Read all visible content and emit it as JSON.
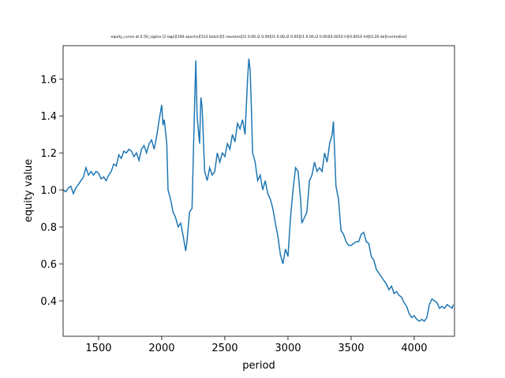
{
  "chart_data": {
    "type": "line",
    "title": "equity_curve at 0.50_sigma [2 lags][100 epochs][512 batch][5 neurons][l1 0.00,l2 0.00][l1 0.00,l2 0.00][l1 0.00,l2 0.00][0.0010 lr][0.0010 lrd][0.20 do][normalize]",
    "x_label": "period",
    "y_label": "equity value",
    "color": "#1f77b4",
    "x": [
      1220,
      1240,
      1260,
      1280,
      1300,
      1320,
      1340,
      1360,
      1380,
      1400,
      1420,
      1440,
      1460,
      1480,
      1500,
      1520,
      1540,
      1560,
      1580,
      1600,
      1620,
      1640,
      1660,
      1680,
      1700,
      1720,
      1740,
      1760,
      1780,
      1800,
      1820,
      1840,
      1860,
      1880,
      1900,
      1920,
      1940,
      1960,
      1980,
      2000,
      2010,
      2020,
      2040,
      2050,
      2070,
      2090,
      2110,
      2130,
      2150,
      2170,
      2190,
      2200,
      2220,
      2240,
      2260,
      2270,
      2280,
      2300,
      2310,
      2320,
      2340,
      2360,
      2380,
      2400,
      2420,
      2440,
      2460,
      2480,
      2500,
      2520,
      2540,
      2560,
      2580,
      2600,
      2620,
      2640,
      2660,
      2680,
      2690,
      2700,
      2710,
      2720,
      2740,
      2760,
      2780,
      2800,
      2820,
      2840,
      2860,
      2880,
      2900,
      2920,
      2940,
      2960,
      2980,
      3000,
      3020,
      3040,
      3060,
      3080,
      3100,
      3110,
      3130,
      3150,
      3170,
      3190,
      3210,
      3230,
      3250,
      3270,
      3290,
      3310,
      3330,
      3350,
      3360,
      3370,
      3380,
      3400,
      3420,
      3440,
      3460,
      3480,
      3500,
      3520,
      3540,
      3560,
      3580,
      3600,
      3620,
      3640,
      3660,
      3680,
      3700,
      3720,
      3740,
      3760,
      3780,
      3800,
      3820,
      3840,
      3860,
      3880,
      3900,
      3920,
      3940,
      3960,
      3980,
      4000,
      4020,
      4040,
      4060,
      4080,
      4100,
      4120,
      4140,
      4160,
      4180,
      4200,
      4220,
      4240,
      4260,
      4280,
      4300,
      4310
    ],
    "values": [
      1.0,
      0.99,
      1.01,
      1.02,
      0.98,
      1.01,
      1.03,
      1.05,
      1.07,
      1.12,
      1.08,
      1.1,
      1.08,
      1.1,
      1.09,
      1.06,
      1.07,
      1.05,
      1.08,
      1.1,
      1.14,
      1.13,
      1.19,
      1.17,
      1.21,
      1.2,
      1.22,
      1.21,
      1.18,
      1.2,
      1.16,
      1.22,
      1.24,
      1.2,
      1.25,
      1.27,
      1.22,
      1.29,
      1.38,
      1.46,
      1.35,
      1.38,
      1.25,
      1.0,
      0.95,
      0.88,
      0.85,
      0.8,
      0.82,
      0.75,
      0.67,
      0.72,
      0.88,
      0.9,
      1.45,
      1.7,
      1.4,
      1.25,
      1.5,
      1.45,
      1.1,
      1.05,
      1.12,
      1.08,
      1.1,
      1.2,
      1.15,
      1.2,
      1.18,
      1.25,
      1.22,
      1.3,
      1.26,
      1.36,
      1.33,
      1.38,
      1.3,
      1.6,
      1.71,
      1.65,
      1.45,
      1.2,
      1.15,
      1.05,
      1.08,
      1.0,
      1.05,
      0.98,
      0.95,
      0.9,
      0.82,
      0.75,
      0.65,
      0.6,
      0.68,
      0.64,
      0.85,
      1.0,
      1.12,
      1.1,
      0.95,
      0.82,
      0.85,
      0.88,
      1.05,
      1.08,
      1.15,
      1.1,
      1.12,
      1.1,
      1.2,
      1.15,
      1.25,
      1.3,
      1.37,
      1.2,
      1.02,
      0.95,
      0.78,
      0.76,
      0.72,
      0.7,
      0.7,
      0.71,
      0.72,
      0.72,
      0.76,
      0.77,
      0.72,
      0.71,
      0.64,
      0.62,
      0.57,
      0.55,
      0.53,
      0.51,
      0.49,
      0.46,
      0.48,
      0.44,
      0.45,
      0.43,
      0.42,
      0.39,
      0.37,
      0.33,
      0.31,
      0.32,
      0.3,
      0.29,
      0.3,
      0.29,
      0.31,
      0.38,
      0.41,
      0.4,
      0.39,
      0.36,
      0.37,
      0.36,
      0.38,
      0.37,
      0.36,
      0.38
    ],
    "xlim": [
      1219,
      4319
    ],
    "ylim": [
      0.2085,
      1.78
    ],
    "xticks": [
      1500,
      2000,
      2500,
      3000,
      3500,
      4000
    ],
    "yticks": [
      0.4,
      0.6,
      0.8,
      {
        "value": 1.0,
        "label": "1.0"
      },
      1.2,
      1.4,
      1.6
    ]
  }
}
